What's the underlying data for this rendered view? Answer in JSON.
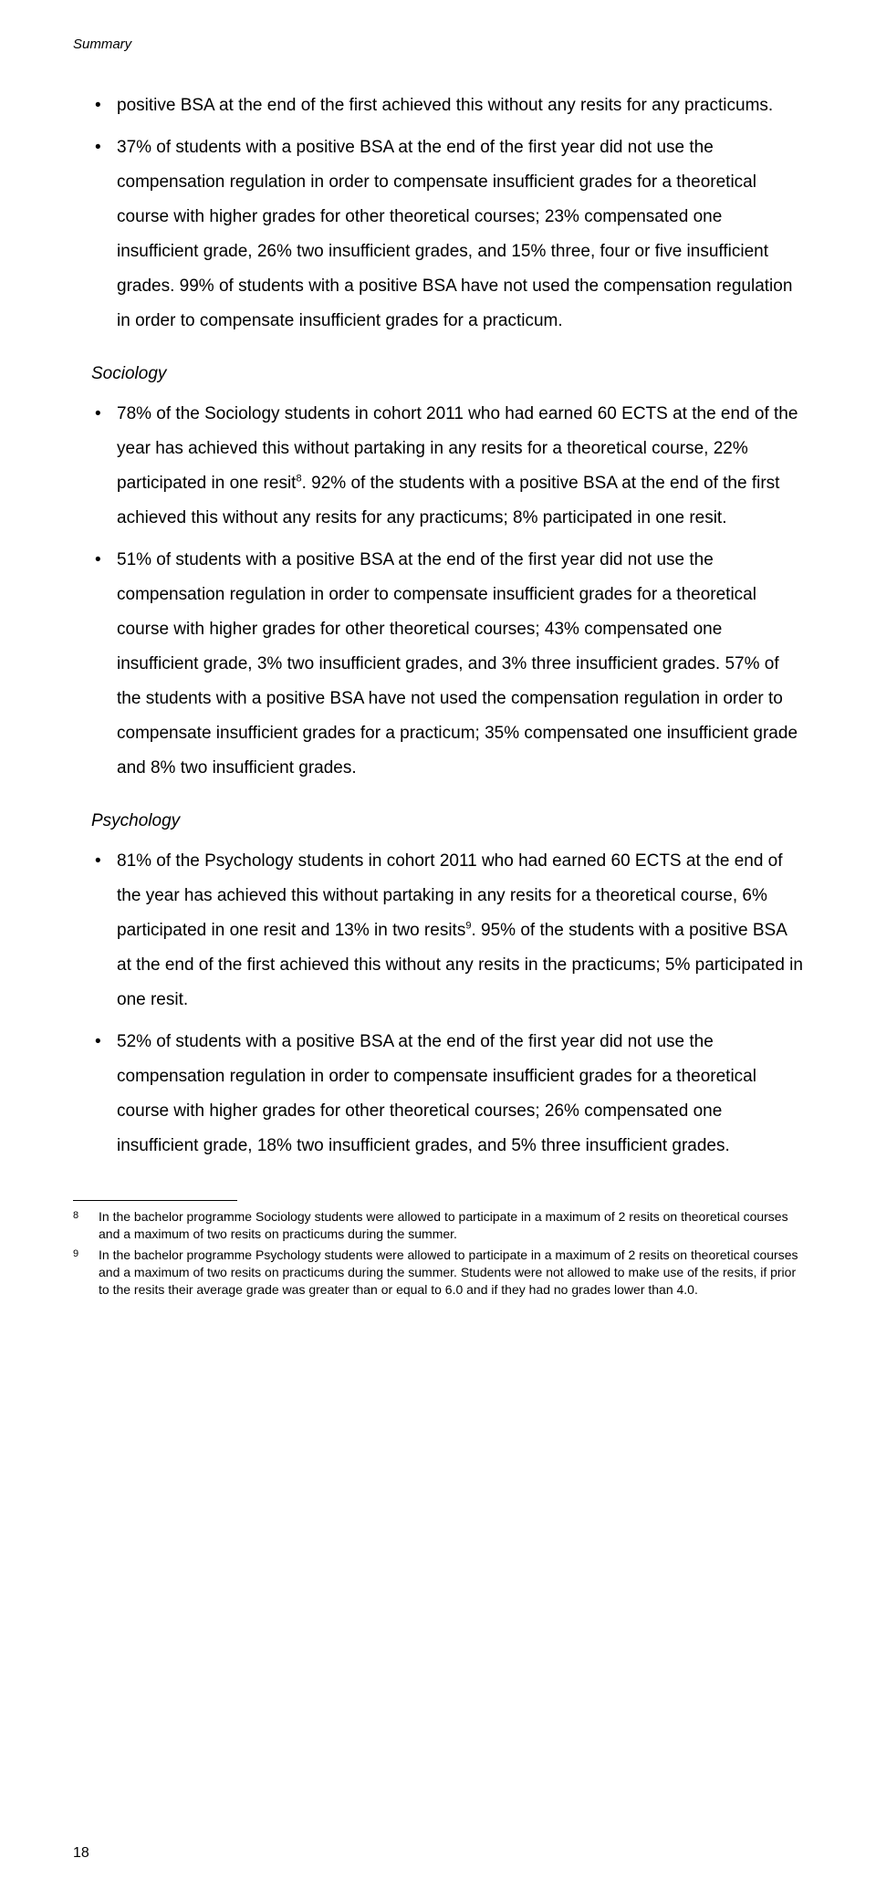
{
  "page": {
    "running_header": "Summary",
    "page_number": "18",
    "background_color": "#ffffff",
    "text_color": "#000000",
    "body_fontsize": 19,
    "header_fontsize": 15,
    "footnote_fontsize": 14,
    "line_height": 2.0
  },
  "intro_bullets": [
    "positive BSA at the end of the first achieved this without any resits for any practicums.",
    "37% of students with a positive BSA at the end of the first year did not use the compensation regulation in order to compensate  insufficient grades for a theoretical course with higher grades for other theoretical courses; 23% compensated one insufficient grade, 26% two insufficient grades, and 15% three, four or five insufficient grades. 99% of students with a positive BSA have not used the compensation regulation in order to compensate insufficient grades for a practicum."
  ],
  "sections": [
    {
      "heading": "Sociology",
      "bullets": [
        {
          "html": "78% of the Sociology students in cohort 2011 who had earned 60 ECTS at the end of the year has achieved this without partaking in any resits for a theoretical course, 22% participated in one resit<sup>8</sup>. 92% of the students with a positive BSA at the end of the first achieved this without any resits for any practicums; 8% participated in one resit."
        },
        {
          "html": "51% of students with a positive BSA at the end of the first year did not use the compensation regulation in order to compensate insufficient grades for a theoretical course with higher grades for other theoretical courses; 43% compensated one insufficient grade, 3% two insufficient grades, and 3% three insufficient grades. 57% of the students with a positive BSA have not used the compensation regulation in order to compensate insufficient grades for a practicum; 35% compensated one insufficient grade and 8% two insufficient grades."
        }
      ]
    },
    {
      "heading": "Psychology",
      "bullets": [
        {
          "html": "81% of the Psychology students in cohort 2011 who had earned 60 ECTS at the end of the year has achieved this without partaking in any resits for a theoretical course, 6% participated in one resit and 13% in two resits<sup>9</sup>. 95% of the students with a positive BSA at the end of the first achieved this without any resits in the practicums; 5% participated in one resit."
        },
        {
          "html": "52% of students with a positive BSA at the end of the first year did not use the compensation regulation in order to compensate insufficient grades for a theoretical course with higher grades for other theoretical courses; 26% compensated one insufficient grade, 18% two insufficient grades, and 5% three insufficient grades."
        }
      ]
    }
  ],
  "footnotes": [
    {
      "num": "8",
      "text": "In the bachelor programme Sociology students were allowed to participate in a maximum of 2 resits on theoretical courses and a maximum of two resits on practicums during the summer."
    },
    {
      "num": "9",
      "text": "In the bachelor programme Psychology students were allowed to participate in a maximum of 2 resits on theoretical courses and a maximum of two resits on practicums during the summer. Students were not allowed to make use of the resits, if prior to the resits their average grade was greater than or equal to 6.0 and if they had no grades lower than 4.0."
    }
  ]
}
